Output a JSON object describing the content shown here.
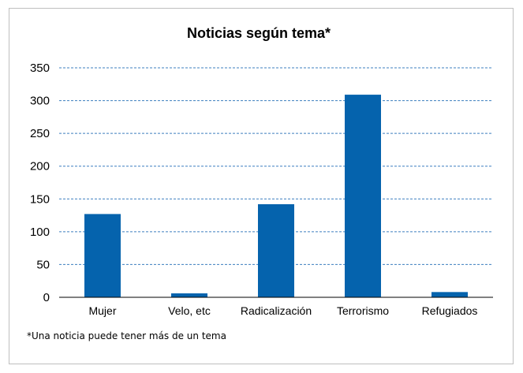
{
  "chart_data": {
    "type": "bar",
    "title": "Noticias según tema*",
    "categories": [
      "Mujer",
      "Velo, etc",
      "Radicalización",
      "Terrorismo",
      "Refugiados"
    ],
    "values": [
      127,
      6,
      142,
      309,
      8
    ],
    "ylim": [
      0,
      350
    ],
    "yticks": [
      0,
      50,
      100,
      150,
      200,
      250,
      300,
      350
    ],
    "grid": true,
    "grid_style": "dashed",
    "bar_color": "#0563AD",
    "grid_color": "#3C7FBF",
    "footnote": "*Una noticia puede tener más de un tema"
  }
}
